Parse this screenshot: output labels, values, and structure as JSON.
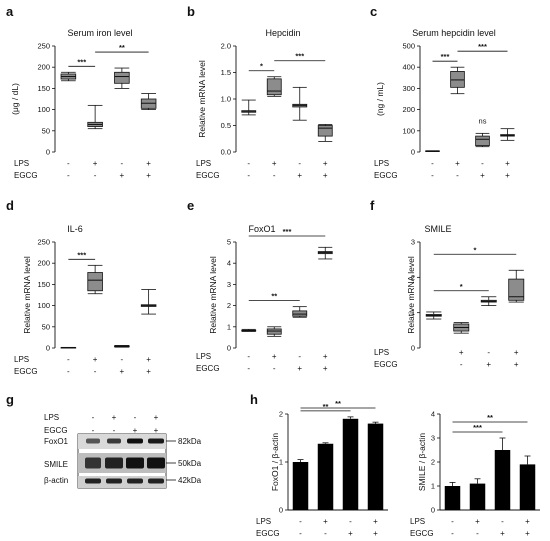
{
  "colors": {
    "box": "#8c8c8c",
    "bar": "#000000",
    "axis": "#111111"
  },
  "row_labels": {
    "lps": "LPS",
    "egcg": "EGCG"
  },
  "chart_data": [
    {
      "id": "a",
      "type": "boxplot",
      "title": "Serum iron level",
      "ylabel": "(μg / dL)",
      "ylim": [
        0,
        250
      ],
      "yticks": [
        0,
        50,
        100,
        150,
        200,
        250
      ],
      "lps": [
        "-",
        "+",
        "-",
        "+"
      ],
      "egcg": [
        "-",
        "-",
        "+",
        "+"
      ],
      "groups": [
        {
          "whisker_low": 168,
          "q1": 172,
          "median": 178,
          "q3": 184,
          "whisker_high": 188
        },
        {
          "whisker_low": 55,
          "q1": 60,
          "median": 65,
          "q3": 70,
          "whisker_high": 110
        },
        {
          "whisker_low": 150,
          "q1": 162,
          "median": 178,
          "q3": 188,
          "whisker_high": 198
        },
        {
          "whisker_low": 100,
          "q1": 103,
          "median": 115,
          "q3": 125,
          "whisker_high": 138
        }
      ],
      "significance": [
        {
          "from": 0,
          "to": 1,
          "label": "***"
        },
        {
          "from": 1,
          "to": 3,
          "label": "**"
        }
      ]
    },
    {
      "id": "b",
      "type": "boxplot",
      "title": "Hepcidin",
      "ylabel": "Relative mRNA level",
      "ylim": [
        0,
        2.0
      ],
      "yticks": [
        0,
        0.5,
        1.0,
        1.5,
        2.0
      ],
      "ytick_labels": [
        "0.0",
        "0.5",
        "1.0",
        "1.5",
        "2.0"
      ],
      "lps": [
        "-",
        "+",
        "-",
        "+"
      ],
      "egcg": [
        "-",
        "-",
        "+",
        "+"
      ],
      "groups": [
        {
          "whisker_low": 0.7,
          "q1": 0.75,
          "median": 0.76,
          "q3": 0.78,
          "whisker_high": 0.98
        },
        {
          "whisker_low": 1.05,
          "q1": 1.08,
          "median": 1.15,
          "q3": 1.38,
          "whisker_high": 1.42
        },
        {
          "whisker_low": 0.6,
          "q1": 0.85,
          "median": 0.88,
          "q3": 0.9,
          "whisker_high": 1.22
        },
        {
          "whisker_low": 0.2,
          "q1": 0.3,
          "median": 0.45,
          "q3": 0.5,
          "whisker_high": 0.52
        }
      ],
      "significance": [
        {
          "from": 0,
          "to": 1,
          "label": "*"
        },
        {
          "from": 1,
          "to": 3,
          "label": "***"
        }
      ]
    },
    {
      "id": "c",
      "type": "boxplot",
      "title": "Serum hepcidin level",
      "ylabel": "(ng / mL)",
      "ylim": [
        0,
        500
      ],
      "yticks": [
        0,
        100,
        200,
        300,
        400,
        500
      ],
      "lps": [
        "-",
        "+",
        "-",
        "+"
      ],
      "egcg": [
        "-",
        "-",
        "+",
        "+"
      ],
      "groups": [
        {
          "whisker_low": 2,
          "q1": 3,
          "median": 4,
          "q3": 5,
          "whisker_high": 6
        },
        {
          "whisker_low": 275,
          "q1": 305,
          "median": 340,
          "q3": 380,
          "whisker_high": 400
        },
        {
          "whisker_low": 25,
          "q1": 30,
          "median": 60,
          "q3": 75,
          "whisker_high": 88
        },
        {
          "whisker_low": 55,
          "q1": 75,
          "median": 78,
          "q3": 82,
          "whisker_high": 110
        }
      ],
      "significance": [
        {
          "from": 0,
          "to": 1,
          "label": "***"
        },
        {
          "from": 1,
          "to": 3,
          "label": "***"
        },
        {
          "over": 2,
          "label": "ns"
        }
      ]
    },
    {
      "id": "d",
      "type": "boxplot",
      "title": "IL-6",
      "ylabel": "Relative mRNA level",
      "ylim": [
        0,
        250
      ],
      "yticks": [
        0,
        50,
        100,
        150,
        200,
        250
      ],
      "lps": [
        "-",
        "+",
        "-",
        "+"
      ],
      "egcg": [
        "-",
        "-",
        "+",
        "+"
      ],
      "groups": [
        {
          "whisker_low": 0.5,
          "q1": 0.8,
          "median": 1,
          "q3": 1.2,
          "whisker_high": 1.5
        },
        {
          "whisker_low": 128,
          "q1": 135,
          "median": 160,
          "q3": 178,
          "whisker_high": 195
        },
        {
          "whisker_low": 2,
          "q1": 3,
          "median": 4,
          "q3": 5,
          "whisker_high": 6
        },
        {
          "whisker_low": 80,
          "q1": 98,
          "median": 100,
          "q3": 102,
          "whisker_high": 138
        }
      ],
      "significance": [
        {
          "from": 0,
          "to": 1,
          "label": "***"
        }
      ]
    },
    {
      "id": "e",
      "type": "boxplot",
      "title": "FoxO1",
      "ylabel": "Relative mRNA level",
      "ylim": [
        0,
        5
      ],
      "yticks": [
        0,
        1,
        2,
        3,
        4,
        5
      ],
      "lps": [
        "-",
        "+",
        "-",
        "+"
      ],
      "egcg": [
        "-",
        "-",
        "+",
        "+"
      ],
      "groups": [
        {
          "whisker_low": 0.78,
          "q1": 0.8,
          "median": 0.82,
          "q3": 0.84,
          "whisker_high": 0.88
        },
        {
          "whisker_low": 0.55,
          "q1": 0.65,
          "median": 0.8,
          "q3": 0.9,
          "whisker_high": 1.0
        },
        {
          "whisker_low": 1.45,
          "q1": 1.5,
          "median": 1.6,
          "q3": 1.75,
          "whisker_high": 1.95
        },
        {
          "whisker_low": 4.2,
          "q1": 4.45,
          "median": 4.5,
          "q3": 4.55,
          "whisker_high": 4.75
        }
      ],
      "significance": [
        {
          "from": 0,
          "to": 2,
          "label": "**"
        },
        {
          "from": 0,
          "to": 3,
          "label": "***"
        }
      ]
    },
    {
      "id": "f",
      "type": "boxplot",
      "title": "SMILE",
      "ylabel": "Relative mRNA level",
      "ylim": [
        0,
        3
      ],
      "yticks": [
        0,
        1,
        2,
        3
      ],
      "lps": [
        "+",
        "-",
        "+"
      ],
      "egcg": [
        "-",
        "+",
        "+"
      ],
      "lps_full": [
        "-",
        "+",
        "-",
        "+"
      ],
      "egcg_full": [
        "-",
        "-",
        "+",
        "+"
      ],
      "groups": [
        {
          "whisker_low": 0.82,
          "q1": 0.9,
          "median": 0.92,
          "q3": 0.95,
          "whisker_high": 1.02
        },
        {
          "whisker_low": 0.42,
          "q1": 0.48,
          "median": 0.58,
          "q3": 0.68,
          "whisker_high": 0.72
        },
        {
          "whisker_low": 1.2,
          "q1": 1.3,
          "median": 1.32,
          "q3": 1.35,
          "whisker_high": 1.45
        },
        {
          "whisker_low": 1.3,
          "q1": 1.35,
          "median": 1.45,
          "q3": 1.95,
          "whisker_high": 2.2
        }
      ],
      "significance": [
        {
          "from": 0,
          "to": 2,
          "label": "*"
        },
        {
          "from": 0,
          "to": 3,
          "label": "*"
        }
      ]
    },
    {
      "id": "h1",
      "type": "bar",
      "ylabel": "FoxO1 / β-actin",
      "ylim": [
        0,
        2
      ],
      "yticks": [
        0,
        1,
        2
      ],
      "lps": [
        "-",
        "+",
        "-",
        "+"
      ],
      "egcg": [
        "-",
        "-",
        "+",
        "+"
      ],
      "values": [
        1.0,
        1.38,
        1.9,
        1.8
      ],
      "errors": [
        0.05,
        0.02,
        0.04,
        0.03
      ],
      "significance": [
        {
          "from": 0,
          "to": 2,
          "label": "**"
        },
        {
          "from": 0,
          "to": 3,
          "label": "**"
        }
      ]
    },
    {
      "id": "h2",
      "type": "bar",
      "ylabel": "SMILE / β-actin",
      "ylim": [
        0,
        4
      ],
      "yticks": [
        0,
        1,
        2,
        3,
        4
      ],
      "lps": [
        "-",
        "+",
        "-",
        "+"
      ],
      "egcg": [
        "-",
        "-",
        "+",
        "+"
      ],
      "values": [
        1.0,
        1.1,
        2.5,
        1.9
      ],
      "errors": [
        0.15,
        0.2,
        0.5,
        0.35
      ],
      "significance": [
        {
          "from": 0,
          "to": 2,
          "label": "***"
        },
        {
          "from": 0,
          "to": 3,
          "label": "**"
        }
      ]
    }
  ],
  "panels": {
    "a": {
      "letter": "a"
    },
    "b": {
      "letter": "b"
    },
    "c": {
      "letter": "c"
    },
    "d": {
      "letter": "d"
    },
    "e": {
      "letter": "e"
    },
    "f": {
      "letter": "f"
    },
    "g": {
      "letter": "g"
    },
    "h": {
      "letter": "h"
    }
  },
  "blot": {
    "lps": [
      "-",
      "+",
      "-",
      "+"
    ],
    "egcg": [
      "-",
      "-",
      "+",
      "+"
    ],
    "rows": [
      {
        "label": "FoxO1",
        "size": "82kDa"
      },
      {
        "label": "SMILE",
        "size": "50kDa"
      },
      {
        "label": "β-actin",
        "size": "42kDa"
      }
    ]
  }
}
